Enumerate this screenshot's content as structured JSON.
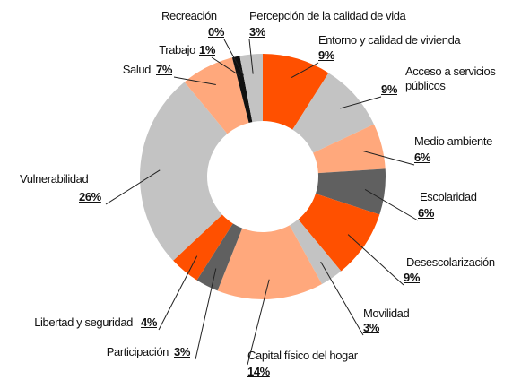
{
  "chart_data": {
    "type": "donut",
    "categories": [
      "Entorno y calidad de vivienda",
      "Acceso a servicios públicos",
      "Medio ambiente",
      "Escolaridad",
      "Desescolarización",
      "Movilidad",
      "Capital físico del hogar",
      "Participación",
      "Libertad y seguridad",
      "Vulnerabilidad",
      "Salud",
      "Trabajo",
      "Recreación",
      "Percepción de la calidad de vida"
    ],
    "values": [
      9,
      9,
      6,
      6,
      9,
      3,
      14,
      3,
      4,
      26,
      7,
      1,
      0,
      3
    ],
    "value_labels": [
      "9%",
      "9%",
      "6%",
      "6%",
      "9%",
      "3%",
      "14%",
      "3%",
      "4%",
      "26%",
      "7%",
      "1%",
      "0%",
      "3%"
    ],
    "colors": [
      "#ff5000",
      "#c3c3c3",
      "#ffa87c",
      "#606060",
      "#ff5000",
      "#c3c3c3",
      "#ffa87c",
      "#606060",
      "#ff5000",
      "#c3c3c3",
      "#ffa87c",
      "#111111",
      "#ff5000",
      "#c3c3c3"
    ]
  }
}
